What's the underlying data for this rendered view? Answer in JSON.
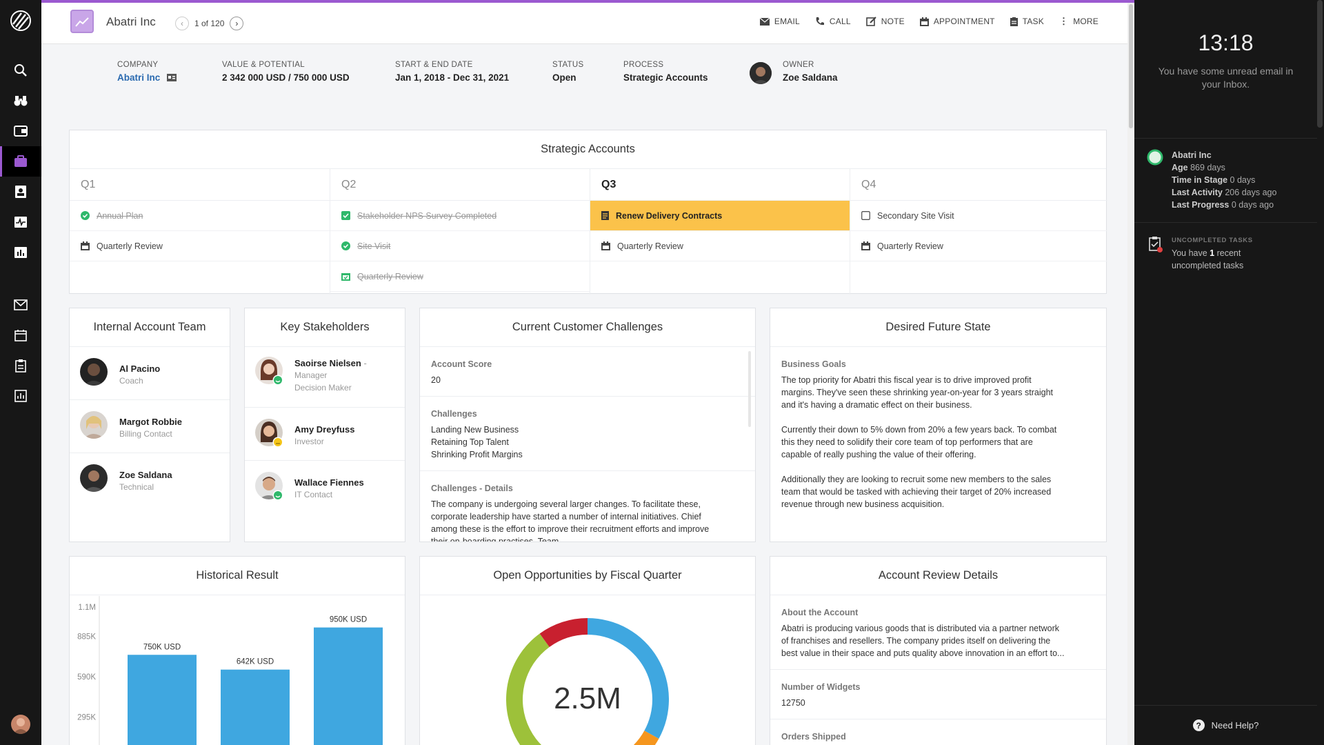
{
  "topbar": {
    "account_name": "Abatri Inc",
    "pager_text": "1 of 120",
    "actions": [
      {
        "label": "EMAIL",
        "icon": "email-icon"
      },
      {
        "label": "CALL",
        "icon": "phone-icon"
      },
      {
        "label": "NOTE",
        "icon": "note-icon"
      },
      {
        "label": "APPOINTMENT",
        "icon": "calendar-icon"
      },
      {
        "label": "TASK",
        "icon": "task-icon"
      },
      {
        "label": "MORE",
        "icon": "more-icon"
      }
    ]
  },
  "info": {
    "company_label": "COMPANY",
    "company_value": "Abatri Inc",
    "value_label": "VALUE & POTENTIAL",
    "value_value": "2 342 000 USD / 750 000 USD",
    "dates_label": "START & END DATE",
    "dates_value": "Jan 1, 2018 - Dec 31, 2021",
    "status_label": "STATUS",
    "status_value": "Open",
    "process_label": "PROCESS",
    "process_value": "Strategic Accounts",
    "owner_label": "OWNER",
    "owner_value": "Zoe Saldana"
  },
  "strategic": {
    "title": "Strategic Accounts",
    "quarters": [
      {
        "name": "Q1",
        "items": [
          {
            "text": "Annual Plan",
            "state": "done",
            "icon": "check-circle-icon"
          },
          {
            "text": "Quarterly Review",
            "state": "open",
            "icon": "calendar-icon"
          }
        ]
      },
      {
        "name": "Q2",
        "items": [
          {
            "text": "Stakeholder NPS Survey Completed",
            "state": "done",
            "icon": "checkbox-checked-icon"
          },
          {
            "text": "Site Visit",
            "state": "done",
            "icon": "check-circle-icon"
          },
          {
            "text": "Quarterly Review",
            "state": "done",
            "icon": "calendar-check-icon"
          }
        ]
      },
      {
        "name": "Q3",
        "items": [
          {
            "text": "Renew Delivery Contracts",
            "state": "highlight",
            "icon": "document-icon"
          },
          {
            "text": "Quarterly Review",
            "state": "open",
            "icon": "calendar-icon"
          }
        ]
      },
      {
        "name": "Q4",
        "items": [
          {
            "text": "Secondary Site Visit",
            "state": "open",
            "icon": "checkbox-empty-icon"
          },
          {
            "text": "Quarterly Review",
            "state": "open",
            "icon": "calendar-icon"
          }
        ]
      }
    ]
  },
  "team": {
    "title": "Internal Account Team",
    "members": [
      {
        "name": "Al Pacino",
        "role": "Coach"
      },
      {
        "name": "Margot Robbie",
        "role": "Billing Contact"
      },
      {
        "name": "Zoe Saldana",
        "role": "Technical"
      }
    ]
  },
  "stakeholders": {
    "title": "Key Stakeholders",
    "people": [
      {
        "name": "Saoirse Nielsen",
        "suffix": " -",
        "role": "Manager",
        "role2": "Decision Maker",
        "mood": "happy"
      },
      {
        "name": "Amy Dreyfuss",
        "suffix": "",
        "role": "Investor",
        "role2": "",
        "mood": "neutral"
      },
      {
        "name": "Wallace Fiennes",
        "suffix": "",
        "role": "IT Contact",
        "role2": "",
        "mood": "happy"
      }
    ]
  },
  "challenges": {
    "title": "Current Customer Challenges",
    "score_label": "Account Score",
    "score_value": "20",
    "challenges_label": "Challenges",
    "challenges_list": [
      "Landing New Business",
      "Retaining Top Talent",
      "Shrinking Profit Margins"
    ],
    "details_label": "Challenges - Details",
    "details_lines": [
      "The company is undergoing several larger changes. To facilitate these,",
      "corporate leadership have started a number of internal initiatives. Chief",
      "among these is the effort to improve their recruitment efforts and improve",
      "their on-boarding practises. Team"
    ]
  },
  "future": {
    "title": "Desired Future State",
    "goals_label": "Business Goals",
    "paragraphs": [
      [
        "The top priority for Abatri this fiscal year is to drive improved profit",
        "margins. They've seen these shrinking year-on-year for 3 years straight",
        "and it's having a dramatic effect on their business."
      ],
      [
        "Currently their down to 5% down from 20% a few years back. To combat",
        "this they need to solidify their core team of top performers that are",
        "capable of really pushing the value of their offering."
      ],
      [
        "Additionally they are looking to recruit some new members to the sales",
        "team that would be tasked with achieving their target of 20% increased",
        "revenue through new business acquisition."
      ]
    ]
  },
  "historical": {
    "title": "Historical Result",
    "ticks": [
      "1.1M",
      "885K",
      "590K",
      "295K"
    ]
  },
  "opportunities": {
    "title": "Open Opportunities by Fiscal Quarter",
    "center_label": "2.5M"
  },
  "review": {
    "title": "Account Review Details",
    "about_label": "About the Account",
    "about_lines": [
      "Abatri is producing various goods that is distributed via a partner network",
      "of franchises and resellers. The company prides itself on delivering the",
      "best value in their space and puts quality above innovation in an effort to..."
    ],
    "widgets_label": "Number of Widgets",
    "widgets_value": "12750",
    "orders_label": "Orders Shipped"
  },
  "chart_data": [
    {
      "type": "bar",
      "title": "Historical Result",
      "categories": [
        "",
        "",
        ""
      ],
      "values": [
        750000,
        642000,
        950000
      ],
      "data_labels": [
        "750K USD",
        "642K USD",
        "950K USD"
      ],
      "y_ticks": [
        295000,
        590000,
        885000,
        1100000
      ],
      "ylim": [
        0,
        1180000
      ],
      "color": "#3fa7e0"
    },
    {
      "type": "pie",
      "title": "Open Opportunities by Fiscal Quarter",
      "center_label": "2.5M",
      "slices": [
        {
          "value": 0.33,
          "color": "#3fa7e0"
        },
        {
          "value": 0.12,
          "color": "#f5961e"
        },
        {
          "value": 0.45,
          "color": "#9dc13a"
        },
        {
          "value": 0.1,
          "color": "#c8202f"
        }
      ]
    }
  ],
  "rightpanel": {
    "clock": "13:18",
    "clock_msg": "You have some unread email in your Inbox.",
    "account_name": "Abatri Inc",
    "age_label": "Age",
    "age_value": "869 days",
    "stage_label": "Time in Stage",
    "stage_value": "0 days",
    "activity_label": "Last Activity",
    "activity_value": "206 days ago",
    "progress_label": "Last Progress",
    "progress_value": "0 days ago",
    "tasks_label": "UNCOMPLETED TASKS",
    "tasks_pre": "You have ",
    "tasks_count": "1",
    "tasks_post": " recent",
    "tasks_line2": "uncompleted tasks",
    "help": "Need Help?"
  },
  "colors": {
    "accent": "#9b59d0",
    "highlight": "#fbc24a",
    "done_green": "#2fb86b",
    "bar_blue": "#3fa7e0"
  }
}
